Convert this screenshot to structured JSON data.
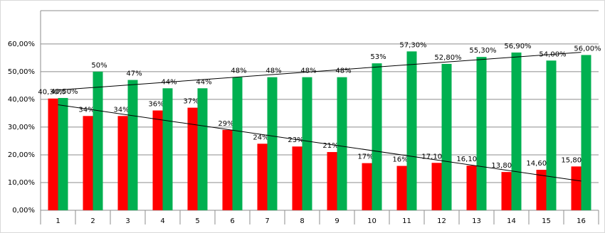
{
  "chart_data": {
    "type": "bar",
    "categories": [
      "1",
      "2",
      "3",
      "4",
      "5",
      "6",
      "7",
      "8",
      "9",
      "10",
      "11",
      "12",
      "13",
      "14",
      "15",
      "16"
    ],
    "series": [
      {
        "color": "#ff0000",
        "values": [
          40.3,
          34,
          34,
          36,
          37,
          29,
          24,
          23,
          21,
          17,
          16,
          17.1,
          16.1,
          13.8,
          14.6,
          15.8
        ],
        "value_labels": [
          "40,30%",
          "34%",
          "34%",
          "36%",
          "37%",
          "29%",
          "24%",
          "23%",
          "21%",
          "17%",
          "16%",
          "17,10%",
          "16,10%",
          "13,80%",
          "14,60%",
          "15,80%"
        ]
      },
      {
        "color": "#00b050",
        "values": [
          40.5,
          50,
          47,
          44,
          44,
          48,
          48,
          48,
          48,
          53,
          57.3,
          52.8,
          55.3,
          56.9,
          54,
          56
        ],
        "value_labels": [
          "40,50%",
          "50%",
          "47%",
          "44%",
          "44%",
          "48%",
          "48%",
          "48%",
          "48%",
          "53%",
          "57,30%",
          "52,80%",
          "55,30%",
          "56,90%",
          "54,00%",
          "56,00%"
        ]
      }
    ],
    "trendline": true,
    "ylim": [
      0,
      72
    ],
    "yticks": [
      {
        "value": 0,
        "label": "0,00%"
      },
      {
        "value": 10,
        "label": "10,00%"
      },
      {
        "value": 20,
        "label": "20,00%"
      },
      {
        "value": 30,
        "label": "30,00%"
      },
      {
        "value": 40,
        "label": "40,00%"
      },
      {
        "value": 50,
        "label": "50,00%"
      },
      {
        "value": 60,
        "label": "60,00%"
      }
    ],
    "grid": true
  }
}
